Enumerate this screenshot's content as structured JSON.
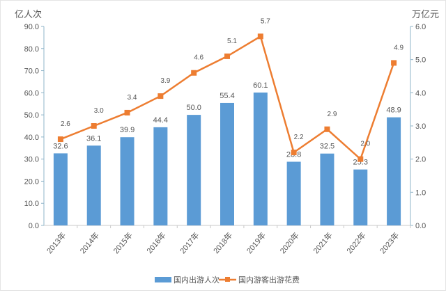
{
  "chart_data": {
    "type": "bar+line",
    "categories": [
      "2013年",
      "2014年",
      "2015年",
      "2016年",
      "2017年",
      "2018年",
      "2019年",
      "2020年",
      "2021年",
      "2022年",
      "2023年"
    ],
    "series": [
      {
        "name": "国内出游人次",
        "type": "bar",
        "axis": "left",
        "color": "#5b9bd5",
        "values": [
          32.6,
          36.1,
          39.9,
          44.4,
          50.0,
          55.4,
          60.1,
          28.8,
          32.5,
          25.3,
          48.9
        ]
      },
      {
        "name": "国内游客出游花费",
        "type": "line",
        "axis": "right",
        "color": "#ed7d31",
        "values": [
          2.6,
          3.0,
          3.4,
          3.9,
          4.6,
          5.1,
          5.7,
          2.2,
          2.9,
          2.0,
          4.9
        ]
      }
    ],
    "ylabel_left": "亿人次",
    "ylabel_right": "万亿元",
    "ylim_left": [
      0,
      90
    ],
    "yticks_left": [
      "0.0",
      "10.0",
      "20.0",
      "30.0",
      "40.0",
      "50.0",
      "60.0",
      "70.0",
      "80.0",
      "90.0"
    ],
    "ylim_right": [
      0,
      6
    ],
    "yticks_right": [
      "0.0",
      "1.0",
      "2.0",
      "3.0",
      "4.0",
      "5.0",
      "6.0"
    ],
    "legend_position": "bottom",
    "grid": false
  }
}
